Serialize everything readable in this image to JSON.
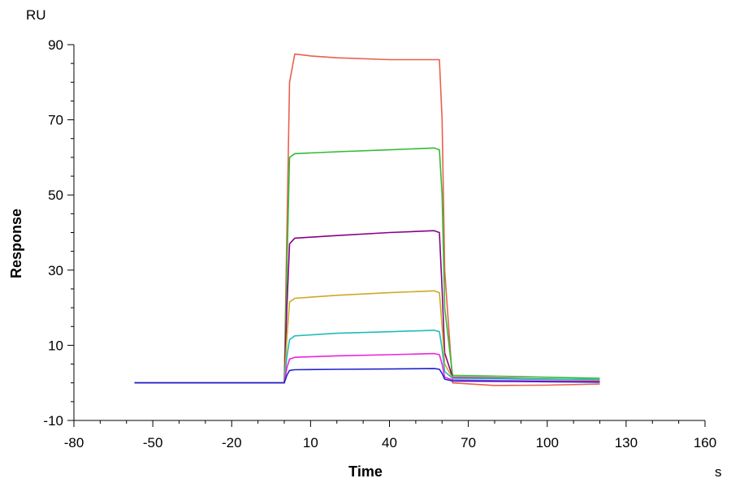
{
  "chart_data": {
    "type": "line",
    "xlabel": "Time",
    "ylabel": "Response",
    "x_unit": "s",
    "y_unit": "RU",
    "xlim": [
      -80,
      160
    ],
    "ylim": [
      -10,
      90
    ],
    "x_ticks": [
      -80,
      -50,
      -20,
      10,
      40,
      70,
      100,
      130,
      160
    ],
    "y_ticks": [
      -10,
      10,
      30,
      50,
      70,
      90
    ],
    "grid": false,
    "legend": "none",
    "series": [
      {
        "color": "#e8604c",
        "x": [
          -57,
          -20,
          0,
          1,
          2,
          4,
          10,
          20,
          40,
          57,
          59,
          60,
          61,
          64,
          80,
          100,
          120
        ],
        "y": [
          0,
          0,
          0,
          40,
          80,
          87.5,
          87,
          86.5,
          86,
          86,
          86,
          70,
          30,
          0,
          -0.7,
          -0.6,
          -0.3
        ]
      },
      {
        "color": "#33bb33",
        "x": [
          -57,
          -20,
          0,
          1,
          2,
          4,
          20,
          40,
          57,
          59,
          60,
          61,
          64,
          80,
          100,
          120
        ],
        "y": [
          0,
          0,
          0,
          30,
          60,
          61,
          61.5,
          62,
          62.5,
          62,
          50,
          20,
          2,
          1.8,
          1.5,
          1.2
        ]
      },
      {
        "color": "#880088",
        "x": [
          -57,
          -20,
          0,
          1,
          2,
          4,
          20,
          40,
          57,
          59,
          60,
          61,
          64,
          80,
          100,
          120
        ],
        "y": [
          0,
          0,
          0,
          20,
          37,
          38.5,
          39.2,
          40,
          40.5,
          40,
          25,
          8,
          1.5,
          1.3,
          1,
          0.8
        ]
      },
      {
        "color": "#ccaa22",
        "x": [
          -57,
          -20,
          0,
          1,
          2,
          4,
          20,
          40,
          57,
          59,
          60,
          61,
          64,
          80,
          100,
          120
        ],
        "y": [
          0,
          0,
          0,
          12,
          21.5,
          22.5,
          23.3,
          24,
          24.5,
          24,
          15,
          5,
          1.3,
          1.1,
          0.9,
          0.7
        ]
      },
      {
        "color": "#22bbbb",
        "x": [
          -57,
          -20,
          0,
          1,
          2,
          4,
          20,
          40,
          57,
          59,
          60,
          61,
          64,
          80,
          100,
          120
        ],
        "y": [
          0,
          0,
          0,
          7,
          11.5,
          12.5,
          13.2,
          13.6,
          14,
          13.6,
          9,
          3,
          1.2,
          1.1,
          1,
          0.9
        ]
      },
      {
        "color": "#ee22dd",
        "x": [
          -57,
          -20,
          0,
          1,
          2,
          4,
          20,
          40,
          57,
          59,
          60,
          61,
          64,
          80,
          100,
          120
        ],
        "y": [
          0,
          0,
          0,
          4,
          6.3,
          6.8,
          7.2,
          7.5,
          7.8,
          7.5,
          5,
          1.5,
          0.8,
          0.6,
          0.5,
          0.4
        ]
      },
      {
        "color": "#2222cc",
        "x": [
          -57,
          -20,
          0,
          1,
          2,
          4,
          20,
          40,
          57,
          59,
          60,
          61,
          64,
          80,
          100,
          120
        ],
        "y": [
          0,
          0,
          0,
          2,
          3.3,
          3.5,
          3.6,
          3.7,
          3.8,
          3.6,
          2.5,
          1,
          0.5,
          0.4,
          0.3,
          0.2
        ]
      }
    ]
  }
}
